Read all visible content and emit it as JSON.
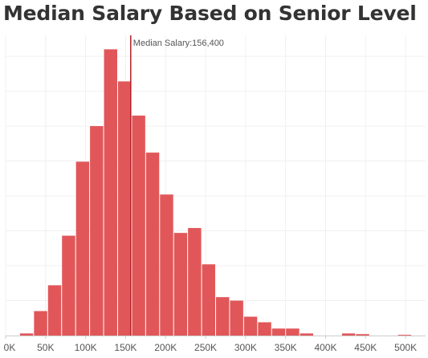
{
  "chart_data": {
    "type": "bar",
    "title": "Median Salary Based on Senior Level",
    "xlabel": "",
    "ylabel": "",
    "bin_width": 17500,
    "bin_starts": [
      17500,
      35000,
      52500,
      70000,
      87500,
      105000,
      122500,
      140000,
      157500,
      175000,
      192500,
      210000,
      227500,
      245000,
      262500,
      280000,
      297500,
      315000,
      332500,
      350000,
      367500,
      385000,
      402500,
      420000,
      437500,
      455000,
      472500,
      490000,
      507500
    ],
    "values": [
      3,
      35,
      72,
      143,
      249,
      300,
      410,
      364,
      315,
      262,
      202,
      147,
      154,
      102,
      55,
      50,
      27,
      19,
      10,
      10,
      3,
      0,
      0,
      3,
      2,
      0,
      0,
      1,
      0
    ],
    "xlim": [
      0,
      525000
    ],
    "ylim": [
      0,
      430
    ],
    "x_tick_values": [
      0,
      50000,
      100000,
      150000,
      200000,
      250000,
      300000,
      350000,
      400000,
      450000,
      500000
    ],
    "x_tick_labels": [
      "0K",
      "50K",
      "100K",
      "150K",
      "200K",
      "250K",
      "300K",
      "350K",
      "400K",
      "450K",
      "500K"
    ],
    "y_gridlines": [
      50,
      100,
      150,
      200,
      250,
      300,
      350,
      400
    ],
    "bar_color": "#e15759",
    "reference_line": {
      "value": 156400,
      "label": "Median Salary:156,400",
      "color": "#b22025"
    },
    "grid": true,
    "legend": "none"
  }
}
